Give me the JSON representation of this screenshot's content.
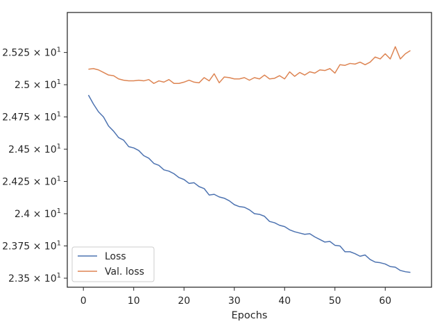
{
  "chart_data": {
    "type": "line",
    "title": "",
    "xlabel": "Epochs",
    "ylabel": "",
    "xlim": [
      -3.2,
      69.2
    ],
    "ylim": [
      23.43,
      25.56
    ],
    "x_ticks": [
      0,
      10,
      20,
      30,
      40,
      50,
      60
    ],
    "y_ticks": [
      23.5,
      23.75,
      24.0,
      24.25,
      24.5,
      24.75,
      25.0,
      25.25
    ],
    "y_tick_mantissas": [
      "2.35",
      "2.375",
      "2.4",
      "2.425",
      "2.45",
      "2.475",
      "2.5",
      "2.525"
    ],
    "y_tick_power_base": "10",
    "y_tick_power_exp": "1",
    "y_tick_times": "×",
    "grid": false,
    "legend_position": "lower-left",
    "colors": {
      "Loss": "#4c72b0",
      "Val. loss": "#dd8452",
      "axes": "#262626"
    },
    "x": [
      1,
      2,
      3,
      4,
      5,
      6,
      7,
      8,
      9,
      10,
      11,
      12,
      13,
      14,
      15,
      16,
      17,
      18,
      19,
      20,
      21,
      22,
      23,
      24,
      25,
      26,
      27,
      28,
      29,
      30,
      31,
      32,
      33,
      34,
      35,
      36,
      37,
      38,
      39,
      40,
      41,
      42,
      43,
      44,
      45,
      46,
      47,
      48,
      49,
      50,
      51,
      52,
      53,
      54,
      55,
      56,
      57,
      58,
      59,
      60,
      61,
      62,
      63,
      64,
      65
    ],
    "series": [
      {
        "name": "Loss",
        "color": "#4c72b0",
        "values": [
          24.92,
          24.85,
          24.79,
          24.75,
          24.68,
          24.64,
          24.59,
          24.57,
          24.52,
          24.51,
          24.49,
          24.45,
          24.43,
          24.39,
          24.375,
          24.34,
          24.33,
          24.31,
          24.28,
          24.265,
          24.235,
          24.24,
          24.21,
          24.195,
          24.145,
          24.15,
          24.13,
          24.12,
          24.1,
          24.07,
          24.055,
          24.05,
          24.03,
          24.0,
          23.995,
          23.98,
          23.94,
          23.93,
          23.91,
          23.9,
          23.875,
          23.86,
          23.85,
          23.84,
          23.845,
          23.82,
          23.8,
          23.78,
          23.785,
          23.755,
          23.75,
          23.705,
          23.705,
          23.69,
          23.67,
          23.68,
          23.645,
          23.625,
          23.62,
          23.61,
          23.59,
          23.585,
          23.56,
          23.55,
          23.545
        ]
      },
      {
        "name": "Val. loss",
        "color": "#dd8452",
        "values": [
          25.12,
          25.125,
          25.115,
          25.095,
          25.075,
          25.07,
          25.045,
          25.035,
          25.03,
          25.03,
          25.035,
          25.03,
          25.04,
          25.01,
          25.03,
          25.02,
          25.04,
          25.01,
          25.01,
          25.02,
          25.035,
          25.02,
          25.015,
          25.055,
          25.03,
          25.085,
          25.015,
          25.06,
          25.055,
          25.045,
          25.045,
          25.055,
          25.035,
          25.055,
          25.045,
          25.075,
          25.045,
          25.05,
          25.07,
          25.045,
          25.1,
          25.065,
          25.095,
          25.075,
          25.1,
          25.09,
          25.115,
          25.11,
          25.125,
          25.09,
          25.155,
          25.15,
          25.165,
          25.16,
          25.175,
          25.155,
          25.175,
          25.215,
          25.2,
          25.24,
          25.2,
          25.295,
          25.2,
          25.24,
          25.265
        ]
      }
    ]
  }
}
